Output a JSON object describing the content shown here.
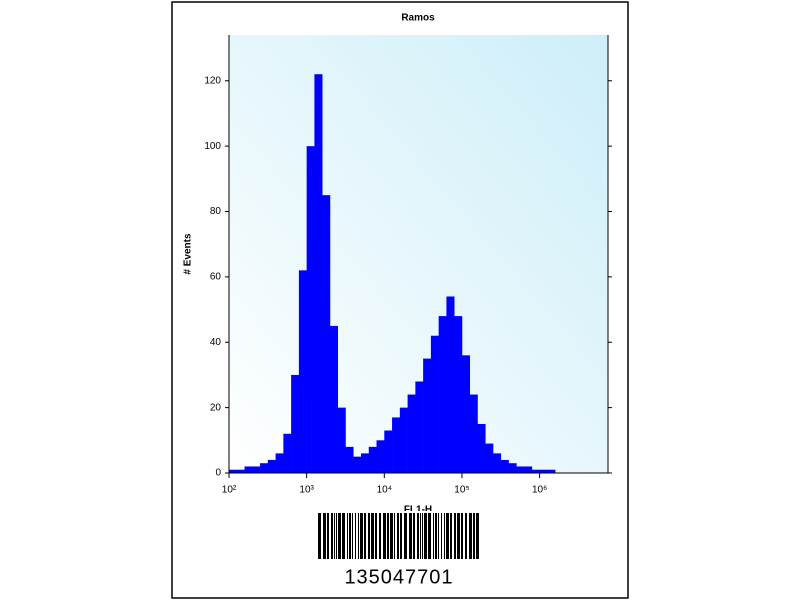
{
  "chart_data": {
    "type": "histogram",
    "title": "Ramos",
    "xlabel": "FL1-H",
    "ylabel": "# Events",
    "color": "#0000ff",
    "xscale": "log",
    "bins": [
      100,
      125.9,
      158.5,
      199.5,
      251.2,
      316.2,
      398.1,
      501.2,
      631,
      794.3,
      1000,
      1259,
      1585,
      1995,
      2512,
      3162,
      3981,
      5012,
      6310,
      7943,
      10000,
      12589,
      15849,
      19953,
      25119,
      31623,
      39811,
      50119,
      63096,
      79433,
      100000,
      125893,
      158489,
      199526,
      251189,
      316228,
      398107,
      501187,
      630957,
      794328,
      1000000,
      1258925,
      1584893,
      1995262,
      2511886,
      3162278,
      3981072,
      5011872,
      6309573
    ],
    "values": [
      1,
      1,
      2,
      2,
      3,
      4,
      6,
      12,
      30,
      62,
      100,
      122,
      85,
      45,
      20,
      8,
      5,
      6,
      8,
      10,
      13,
      17,
      20,
      24,
      28,
      35,
      42,
      48,
      54,
      48,
      36,
      24,
      15,
      9,
      6,
      4,
      3,
      2,
      2,
      1,
      1,
      1,
      0,
      0,
      0,
      0,
      0,
      0
    ],
    "xlim": [
      100,
      7600000
    ],
    "ylim": [
      0,
      134
    ],
    "xticks": [
      {
        "value": 100,
        "label": "10²"
      },
      {
        "value": 1000,
        "label": "10³"
      },
      {
        "value": 10000,
        "label": "10⁴"
      },
      {
        "value": 100000,
        "label": "10⁵"
      },
      {
        "value": 1000000,
        "label": "10⁶"
      }
    ],
    "yticks": [
      0,
      20,
      40,
      60,
      80,
      100,
      120
    ]
  },
  "barcode": "135047701"
}
